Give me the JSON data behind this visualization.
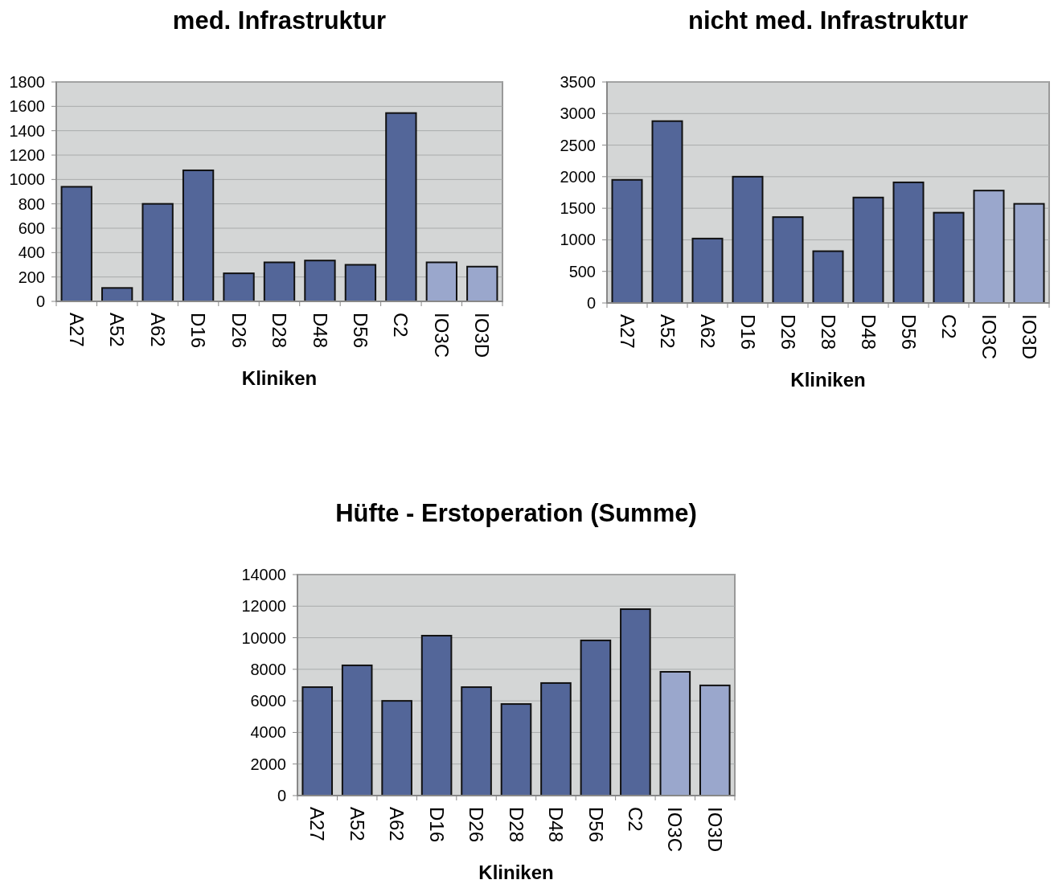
{
  "chart_data": [
    {
      "type": "bar",
      "title": "med. Infrastruktur",
      "xlabel": "Kliniken",
      "categories": [
        "A27",
        "A52",
        "A62",
        "D16",
        "D26",
        "D28",
        "D48",
        "D56",
        "C2",
        "IO3C",
        "IO3D"
      ],
      "values": [
        940,
        110,
        800,
        1075,
        230,
        320,
        335,
        300,
        1545,
        320,
        285
      ],
      "colors": [
        "#536699",
        "#536699",
        "#536699",
        "#536699",
        "#536699",
        "#536699",
        "#536699",
        "#536699",
        "#536699",
        "#9aa7cc",
        "#9aa7cc"
      ],
      "ylim": [
        0,
        1800
      ],
      "yticks": [
        0,
        200,
        400,
        600,
        800,
        1000,
        1200,
        1400,
        1600,
        1800
      ],
      "grid": "y"
    },
    {
      "type": "bar",
      "title": "nicht med. Infrastruktur",
      "xlabel": "Kliniken",
      "categories": [
        "A27",
        "A52",
        "A62",
        "D16",
        "D26",
        "D28",
        "D48",
        "D56",
        "C2",
        "IO3C",
        "IO3D"
      ],
      "values": [
        1950,
        2880,
        1020,
        2000,
        1360,
        820,
        1670,
        1910,
        1430,
        1780,
        1570
      ],
      "colors": [
        "#536699",
        "#536699",
        "#536699",
        "#536699",
        "#536699",
        "#536699",
        "#536699",
        "#536699",
        "#536699",
        "#9aa7cc",
        "#9aa7cc"
      ],
      "ylim": [
        0,
        3500
      ],
      "yticks": [
        0,
        500,
        1000,
        1500,
        2000,
        2500,
        3000,
        3500
      ],
      "grid": "y"
    },
    {
      "type": "bar",
      "title": "Hüfte - Erstoperation (Summe)",
      "xlabel": "Kliniken",
      "categories": [
        "A27",
        "A52",
        "A62",
        "D16",
        "D26",
        "D28",
        "D48",
        "D56",
        "C2",
        "IO3C",
        "IO3D"
      ],
      "values": [
        6870,
        8250,
        6000,
        10130,
        6870,
        5800,
        7130,
        9830,
        11810,
        7840,
        6980
      ],
      "colors": [
        "#536699",
        "#536699",
        "#536699",
        "#536699",
        "#536699",
        "#536699",
        "#536699",
        "#536699",
        "#536699",
        "#9aa7cc",
        "#9aa7cc"
      ],
      "ylim": [
        0,
        14000
      ],
      "yticks": [
        0,
        2000,
        4000,
        6000,
        8000,
        10000,
        12000,
        14000
      ],
      "grid": "y"
    }
  ]
}
